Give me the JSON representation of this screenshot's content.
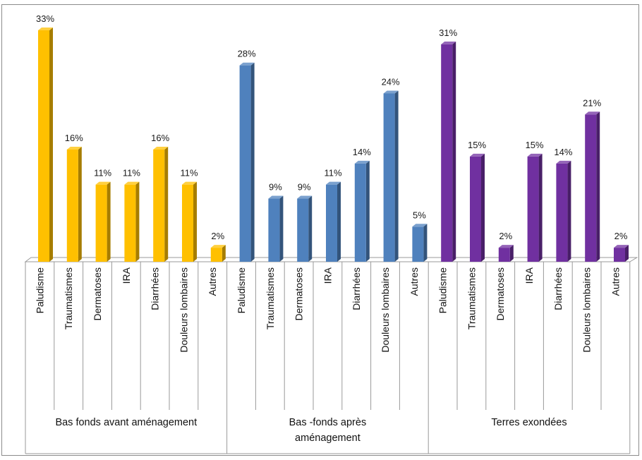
{
  "chart_data": {
    "type": "bar",
    "title": "",
    "xlabel": "",
    "ylabel": "",
    "ylim": [
      0,
      33
    ],
    "grid": false,
    "legend": "none",
    "value_suffix": "%",
    "groups": [
      {
        "name": "Bas fonds avant aménagement",
        "color": "#FFC000",
        "categories": [
          "Paludisme",
          "Traumatismes",
          "Dermatoses",
          "IRA",
          "Diarrhées",
          "Douleurs lombaires",
          "Autres"
        ],
        "values": [
          33,
          16,
          11,
          11,
          16,
          11,
          2
        ]
      },
      {
        "name": "Bas -fonds après aménagement",
        "color": "#4F81BD",
        "categories": [
          "Paludisme",
          "Traumatismes",
          "Dermatoses",
          "IRA",
          "Diarrhées",
          "Douleurs lombaires",
          "Autres"
        ],
        "values": [
          28,
          9,
          9,
          11,
          14,
          24,
          5
        ]
      },
      {
        "name": "Terres exondées",
        "color": "#7030A0",
        "categories": [
          "Paludisme",
          "Traumatismes",
          "Dermatoses",
          "IRA",
          "Diarrhées",
          "Douleurs lombaires",
          "Autres"
        ],
        "values": [
          31,
          15,
          2,
          15,
          14,
          21,
          2
        ]
      }
    ]
  }
}
